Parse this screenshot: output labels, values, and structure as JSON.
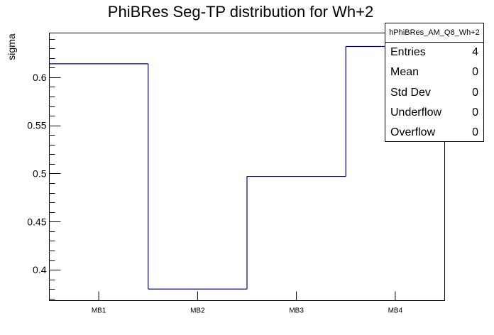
{
  "chart_data": {
    "type": "bar",
    "style": "step-histogram",
    "title": "PhiBRes Seg-TP distribution for Wh+2",
    "xlabel": "",
    "ylabel": "sigma",
    "categories": [
      "MB1",
      "MB2",
      "MB3",
      "MB4"
    ],
    "values": [
      0.614,
      0.38,
      0.497,
      0.632
    ],
    "ylim": [
      0.368,
      0.646
    ],
    "yticks": [
      0.4,
      0.45,
      0.5,
      0.55,
      0.6
    ],
    "ytick_labels": [
      "0.4",
      "0.45",
      "0.5",
      "0.55",
      "0.6"
    ],
    "line_color": "#000080",
    "legend": "top-right"
  },
  "stats": {
    "name": "hPhiBRes_AM_Q8_Wh+2",
    "rows": [
      {
        "label": "Entries",
        "value": "4"
      },
      {
        "label": "Mean",
        "value": "0"
      },
      {
        "label": "Std Dev",
        "value": "0"
      },
      {
        "label": "Underflow",
        "value": "0"
      },
      {
        "label": "Overflow",
        "value": "0"
      }
    ]
  }
}
